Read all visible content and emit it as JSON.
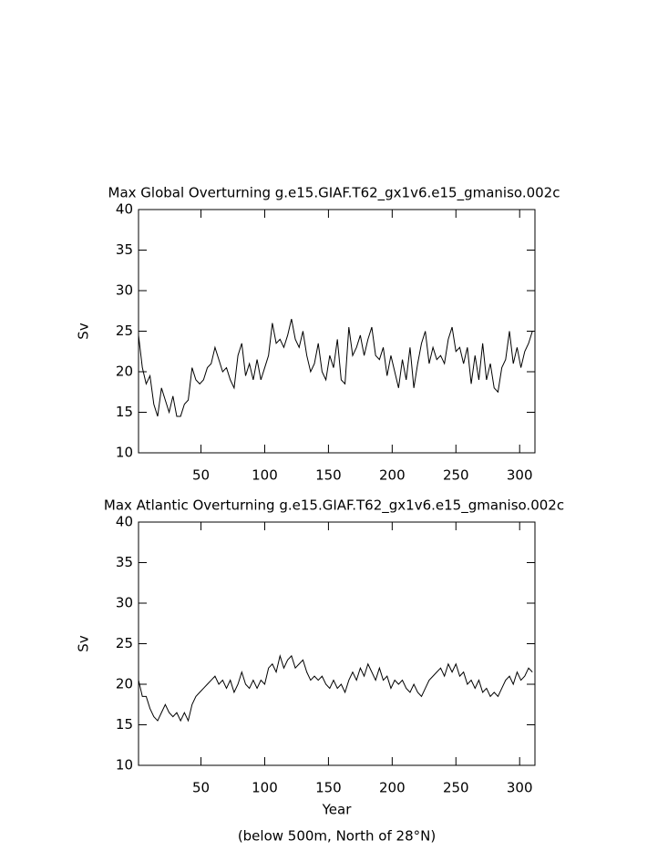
{
  "chart_data": [
    {
      "type": "line",
      "title": "Max Global Overturning g.e15.GIAF.T62_gx1v6.e15_gmaniso.002c",
      "ylabel": "Sv",
      "x": [
        1,
        4,
        7,
        10,
        13,
        16,
        19,
        22,
        25,
        28,
        31,
        34,
        37,
        40,
        43,
        46,
        49,
        52,
        55,
        58,
        61,
        64,
        67,
        70,
        73,
        76,
        79,
        82,
        85,
        88,
        91,
        94,
        97,
        100,
        103,
        106,
        109,
        112,
        115,
        118,
        121,
        124,
        127,
        130,
        133,
        136,
        139,
        142,
        145,
        148,
        151,
        154,
        157,
        160,
        163,
        166,
        169,
        172,
        175,
        178,
        181,
        184,
        187,
        190,
        193,
        196,
        199,
        202,
        205,
        208,
        211,
        214,
        217,
        220,
        223,
        226,
        229,
        232,
        235,
        238,
        241,
        244,
        247,
        250,
        253,
        256,
        259,
        262,
        265,
        268,
        271,
        274,
        277,
        280,
        283,
        286,
        289,
        292,
        295,
        298,
        301,
        304,
        307,
        310
      ],
      "series": [
        {
          "color": "#000000",
          "values": [
            24.5,
            20.5,
            18.5,
            19.5,
            16,
            14.5,
            18,
            16.5,
            15,
            17,
            14.5,
            14.5,
            16,
            16.5,
            20.5,
            19,
            18.5,
            19,
            20.5,
            21,
            23,
            21.5,
            20,
            20.5,
            19,
            18,
            22,
            23.5,
            19.5,
            21,
            19,
            21.5,
            19,
            20.5,
            22,
            26,
            23.5,
            24,
            23,
            24.5,
            26.5,
            24,
            23,
            25,
            22,
            20,
            21,
            23.5,
            20,
            19,
            22,
            20.5,
            24,
            19,
            18.5,
            25.5,
            22,
            23,
            24.5,
            22,
            24,
            25.5,
            22,
            21.5,
            23,
            19.5,
            22,
            20,
            18,
            21.5,
            19,
            23,
            18,
            21,
            23.5,
            25,
            21,
            23,
            21.5,
            22,
            21,
            24,
            25.5,
            22.5,
            23,
            21,
            23,
            18.5,
            22,
            19,
            23.5,
            19,
            21,
            18,
            17.5,
            20.5,
            21.5,
            25,
            21,
            23,
            20.5,
            22.5,
            23.5,
            25
          ]
        }
      ],
      "xlim": [
        1,
        312
      ],
      "ylim": [
        10,
        40
      ],
      "xticks": [
        50,
        100,
        150,
        200,
        250,
        300
      ],
      "yticks": [
        10,
        15,
        20,
        25,
        30,
        35,
        40
      ]
    },
    {
      "type": "line",
      "title": "Max Atlantic Overturning g.e15.GIAF.T62_gx1v6.e15_gmaniso.002c",
      "ylabel": "Sv",
      "xlabel": "Year",
      "note": "(below 500m, North of 28°N)",
      "x": [
        1,
        4,
        7,
        10,
        13,
        16,
        19,
        22,
        25,
        28,
        31,
        34,
        37,
        40,
        43,
        46,
        49,
        52,
        55,
        58,
        61,
        64,
        67,
        70,
        73,
        76,
        79,
        82,
        85,
        88,
        91,
        94,
        97,
        100,
        103,
        106,
        109,
        112,
        115,
        118,
        121,
        124,
        127,
        130,
        133,
        136,
        139,
        142,
        145,
        148,
        151,
        154,
        157,
        160,
        163,
        166,
        169,
        172,
        175,
        178,
        181,
        184,
        187,
        190,
        193,
        196,
        199,
        202,
        205,
        208,
        211,
        214,
        217,
        220,
        223,
        226,
        229,
        232,
        235,
        238,
        241,
        244,
        247,
        250,
        253,
        256,
        259,
        262,
        265,
        268,
        271,
        274,
        277,
        280,
        283,
        286,
        289,
        292,
        295,
        298,
        301,
        304,
        307,
        310
      ],
      "series": [
        {
          "color": "#000000",
          "values": [
            20.5,
            18.5,
            18.5,
            17,
            16,
            15.5,
            16.5,
            17.5,
            16.5,
            16,
            16.5,
            15.5,
            16.5,
            15.5,
            17.5,
            18.5,
            19,
            19.5,
            20,
            20.5,
            21,
            20,
            20.5,
            19.5,
            20.5,
            19,
            20,
            21.5,
            20,
            19.5,
            20.5,
            19.5,
            20.5,
            20,
            22,
            22.5,
            21.5,
            23.5,
            22,
            23,
            23.5,
            22,
            22.5,
            23,
            21.5,
            20.5,
            21,
            20.5,
            21,
            20,
            19.5,
            20.5,
            19.5,
            20,
            19,
            20.5,
            21.5,
            20.5,
            22,
            21,
            22.5,
            21.5,
            20.5,
            22,
            20.5,
            21,
            19.5,
            20.5,
            20,
            20.5,
            19.5,
            19,
            20,
            19,
            18.5,
            19.5,
            20.5,
            21,
            21.5,
            22,
            21,
            22.5,
            21.5,
            22.5,
            21,
            21.5,
            20,
            20.5,
            19.5,
            20.5,
            19,
            19.5,
            18.5,
            19,
            18.5,
            19.5,
            20.5,
            21,
            20,
            21.5,
            20.5,
            21,
            22,
            21.5
          ]
        }
      ],
      "xlim": [
        1,
        312
      ],
      "ylim": [
        10,
        40
      ],
      "xticks": [
        50,
        100,
        150,
        200,
        250,
        300
      ],
      "yticks": [
        10,
        15,
        20,
        25,
        30,
        35,
        40
      ]
    }
  ]
}
